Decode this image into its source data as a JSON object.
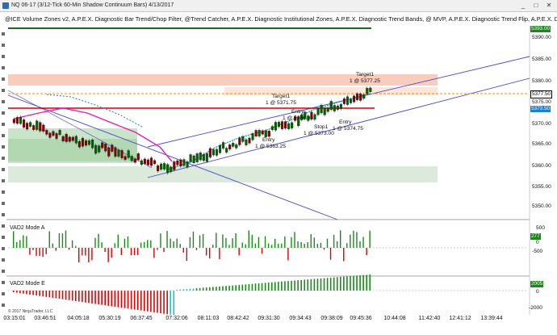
{
  "window": {
    "title": "NQ 06-17 (3/12-Tick 60-Min Shadow Continuum Bars)  4/13/2017",
    "controls": [
      "_",
      "□",
      "✕"
    ]
  },
  "indicators_text": "@ICE Volume Zones v2, A.P.E.X. Diagnostic Bar Trend/Chop Filter, @Trend Catcher, A.P.E.X. Diagnostic Institutional Zones, A.P.E.X. Diagnostic Trend Bands, @ MVP, A.P.E.X. Diagnostic Trend Flip, A.P.E.X. Diagn",
  "price_axis": {
    "ticks": [
      "5393.00",
      "5390.00",
      "5385.00",
      "5380.00",
      "5377.50",
      "5375.00",
      "5370.00",
      "5365.00",
      "5360.00",
      "5355.00",
      "5350.00"
    ]
  },
  "price_tags": {
    "last": "5377.50",
    "current": "5373.50",
    "top": "5393.00"
  },
  "annotations": {
    "target1_top": "Target1",
    "target1_top_price": "1 @ 5377.25",
    "target1_mid": "Target1",
    "target1_mid_price": "1 @ 5371.75",
    "entry_a": "Entry",
    "entry_a_price": "1 @ 5366.00",
    "stop1": "Stop1",
    "stop1_price": "1 @ 5373.00",
    "entry_b": "Entry",
    "entry_b_price": "1 @ 5374.75",
    "entry_c": "Entry",
    "entry_c_price": "1 @ 5363.25"
  },
  "panel_a": {
    "label": "VAD2 Mode A",
    "ticks": [
      "500",
      "0",
      "-500"
    ],
    "current": "277"
  },
  "panel_e": {
    "label": "VAD2 Mode E",
    "ticks": [
      "0",
      "-2000"
    ],
    "current": "2005"
  },
  "x_axis": [
    "03:15:01",
    "03:46:51",
    "04:05:18",
    "05:30:19",
    "06:37:45",
    "07:32:06",
    "08:11:03",
    "08:42:42",
    "09:31:30",
    "09:34:43",
    "09:38:09",
    "09:45:36",
    "10:44:08",
    "11:42:40",
    "12:41:12",
    "13:39:44"
  ],
  "copyright": "© 2017 NinjaTrader, LLC",
  "colors": {
    "up_candle": "#006400",
    "down_candle": "#8b0000",
    "bullish_bar": "#1a8a1a",
    "bearish_bar": "#e00000",
    "channel": "#4a4ad0",
    "resistance": "#d00000",
    "target_line": "#ff8c00",
    "trend_magenta": "#e020b0",
    "trend_teal": "#00a0a0",
    "zone_green": "#b8dcb8",
    "zone_pink": "#f7c8b8"
  }
}
